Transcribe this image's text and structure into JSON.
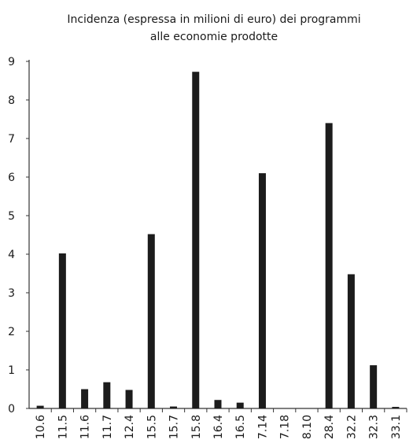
{
  "chart_data": {
    "type": "bar",
    "title": "Incidenza (espressa in milioni di euro) dei programmi alle economie prodotte",
    "title_lines": [
      "Incidenza (espressa in milioni di euro) dei programmi",
      "alle economie prodotte"
    ],
    "xlabel": "",
    "ylabel": "",
    "categories": [
      "10.6",
      "11.5",
      "11.6",
      "11.7",
      "12.4",
      "15.5",
      "15.7",
      "15.8",
      "16.4",
      "16.5",
      "7.14",
      "7.18",
      "8.10",
      "28.4",
      "32.2",
      "32.3",
      "33.1"
    ],
    "values": [
      0.07,
      4.02,
      0.5,
      0.68,
      0.48,
      4.52,
      0.05,
      8.73,
      0.22,
      0.15,
      6.1,
      0.0,
      0.0,
      7.4,
      3.48,
      1.12,
      0.04
    ],
    "ylim": [
      0,
      9
    ],
    "yticks": [
      0,
      1,
      2,
      3,
      4,
      5,
      6,
      7,
      8,
      9
    ],
    "grid": false,
    "legend": "none",
    "bar_color": "#1c1c1c",
    "axis_color": "#333333"
  }
}
